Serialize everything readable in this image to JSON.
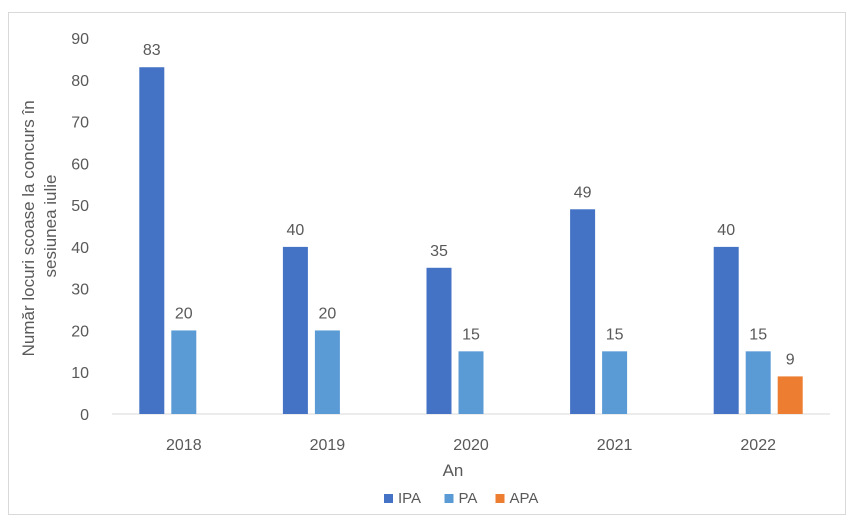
{
  "chart_data": {
    "type": "bar",
    "title": "",
    "xlabel": "An",
    "ylabel": "Număr locuri scoase la concurs în sesiunea iulie",
    "ylim": [
      0,
      90
    ],
    "yticks": [
      0,
      10,
      20,
      30,
      40,
      50,
      60,
      70,
      80,
      90
    ],
    "categories": [
      "2018",
      "2019",
      "2020",
      "2021",
      "2022"
    ],
    "grid": false,
    "legend_position": "bottom",
    "series": [
      {
        "name": "IPA",
        "color": "#4472c4",
        "values": [
          83,
          40,
          35,
          49,
          40
        ]
      },
      {
        "name": "PA",
        "color": "#5b9bd5",
        "values": [
          20,
          20,
          15,
          15,
          15
        ]
      },
      {
        "name": "APA",
        "color": "#ed7d31",
        "values": [
          null,
          null,
          null,
          null,
          9
        ]
      }
    ]
  }
}
